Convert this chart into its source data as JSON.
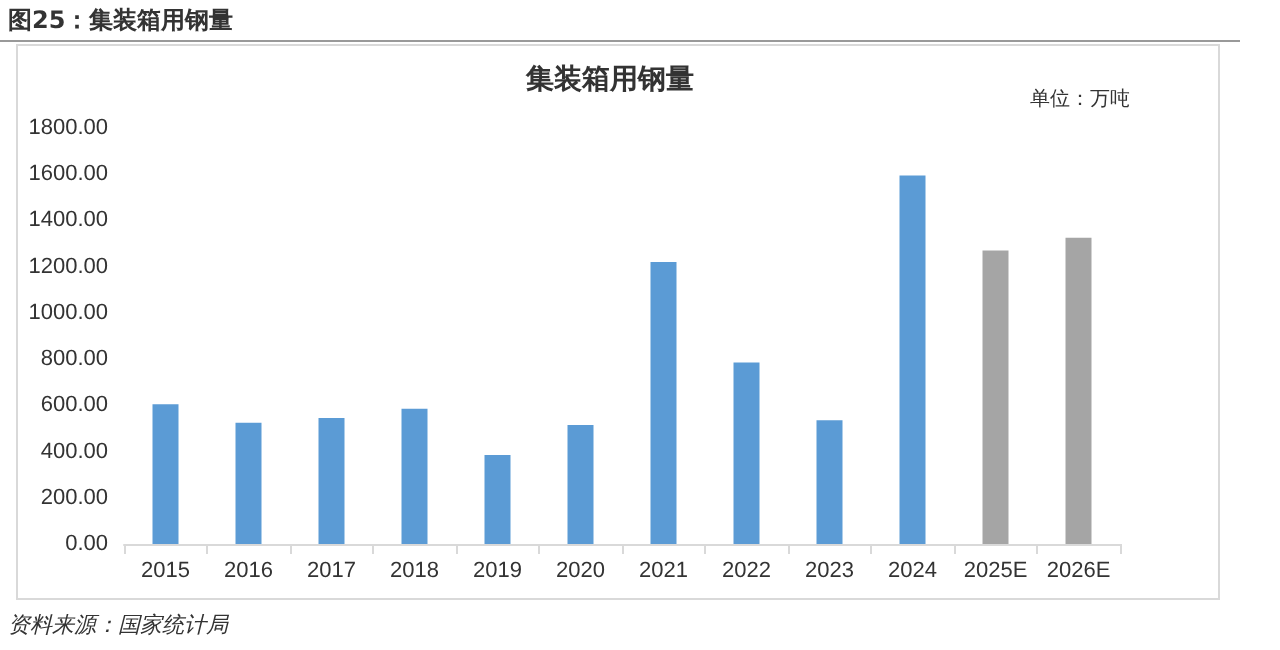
{
  "chart_data": {
    "type": "bar",
    "title": "集装箱用钢量",
    "subtitle": "图25：集装箱用钢量",
    "annotations": [
      "单位：万吨",
      "资料来源：国家统计局"
    ],
    "categories": [
      "2015",
      "2016",
      "2017",
      "2018",
      "2019",
      "2020",
      "2021",
      "2022",
      "2023",
      "2024",
      "2025E",
      "2026E"
    ],
    "values": [
      605,
      525,
      545,
      585,
      385,
      515,
      1220,
      785,
      535,
      1595,
      1270,
      1325
    ],
    "colors": [
      "#5b9bd5",
      "#5b9bd5",
      "#5b9bd5",
      "#5b9bd5",
      "#5b9bd5",
      "#5b9bd5",
      "#5b9bd5",
      "#5b9bd5",
      "#5b9bd5",
      "#5b9bd5",
      "#a5a5a5",
      "#a5a5a5"
    ],
    "ylim": [
      0,
      1800
    ],
    "yticks": [
      {
        "value": 0,
        "label": "0.00"
      },
      {
        "value": 200,
        "label": "200.00"
      },
      {
        "value": 400,
        "label": "400.00"
      },
      {
        "value": 600,
        "label": "600.00"
      },
      {
        "value": 800,
        "label": "800.00"
      },
      {
        "value": 1000,
        "label": "1000.00"
      },
      {
        "value": 1200,
        "label": "1200.00"
      },
      {
        "value": 1400,
        "label": "1400.00"
      },
      {
        "value": 1600,
        "label": "1600.00"
      },
      {
        "value": 1800,
        "label": "1800.00"
      }
    ],
    "grid": false
  }
}
